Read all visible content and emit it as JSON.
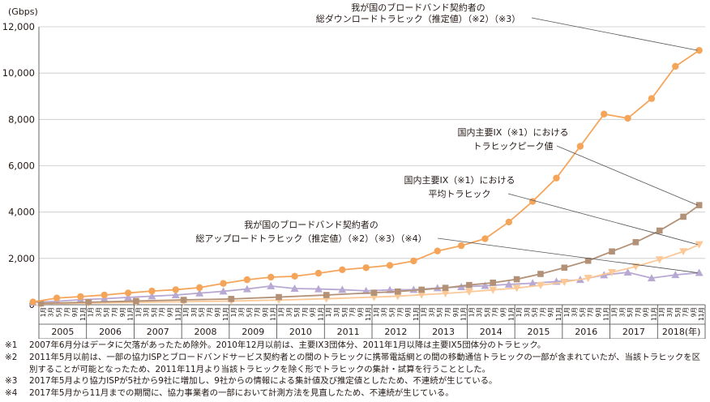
{
  "chart_data": {
    "type": "line",
    "y_unit": "(Gbps)",
    "ylim": [
      0,
      12000
    ],
    "yticks": [
      "0",
      "2,000",
      "4,000",
      "6,000",
      "8,000",
      "10,000",
      "12,000"
    ],
    "x_years": [
      "2005",
      "2006",
      "2007",
      "2008",
      "2009",
      "2010",
      "2011",
      "2012",
      "2013",
      "2014",
      "2015",
      "2016",
      "2017",
      "2018(年)"
    ],
    "x_month_labels": [
      "1月",
      "3月",
      "5月",
      "7月",
      "9月",
      "11月"
    ],
    "x_start": "2005-01",
    "grid": "horizontal",
    "series": [
      {
        "name": "我が国のブロードバンド契約者の総ダウンロードトラヒック（推定値）（※2）（※3）",
        "label_lines": [
          "我が国のブロードバンド契約者の",
          "総ダウンロードトラヒック（推定値）（※2）（※3）"
        ],
        "color": "#f5a55a",
        "marker": "circle",
        "x": [
          "2004-11",
          "2005-05",
          "2005-11",
          "2006-05",
          "2006-11",
          "2007-05",
          "2007-11",
          "2008-05",
          "2008-11",
          "2009-05",
          "2009-11",
          "2010-05",
          "2010-11",
          "2011-05",
          "2011-11",
          "2012-05",
          "2012-11",
          "2013-05",
          "2013-11",
          "2014-05",
          "2014-11",
          "2015-05",
          "2015-11",
          "2016-05",
          "2016-11",
          "2017-05",
          "2017-11",
          "2018-05",
          "2018-11"
        ],
        "values": [
          120,
          290,
          350,
          420,
          510,
          590,
          650,
          740,
          920,
          1080,
          1190,
          1230,
          1360,
          1510,
          1600,
          1700,
          1890,
          2320,
          2550,
          2850,
          3570,
          4460,
          5470,
          6840,
          8230,
          8050,
          8900,
          10290,
          10980
        ]
      },
      {
        "name": "国内主要IX（※1）におけるトラヒックピーク値",
        "label_lines": [
          "国内主要IX（※1）における",
          "トラヒックピーク値"
        ],
        "color": "#b39177",
        "marker": "square",
        "x": [
          "2005-01",
          "2006-01",
          "2007-01",
          "2008-01",
          "2009-01",
          "2010-01",
          "2011-01",
          "2012-01",
          "2012-07",
          "2013-01",
          "2013-07",
          "2014-01",
          "2014-07",
          "2015-01",
          "2015-07",
          "2016-01",
          "2016-07",
          "2017-01",
          "2017-07",
          "2018-01",
          "2018-07",
          "2018-11"
        ],
        "values": [
          60,
          110,
          160,
          210,
          250,
          330,
          420,
          520,
          570,
          650,
          730,
          850,
          950,
          1100,
          1330,
          1600,
          1900,
          2300,
          2700,
          3200,
          3800,
          4300
        ]
      },
      {
        "name": "国内主要IX（※1）における平均トラヒック",
        "label_lines": [
          "国内主要IX（※1）における",
          "平均トラヒック"
        ],
        "color": "#fbc998",
        "marker": "triangle-down",
        "x": [
          "2005-01",
          "2006-01",
          "2007-01",
          "2008-01",
          "2009-01",
          "2010-01",
          "2011-01",
          "2012-01",
          "2012-07",
          "2013-01",
          "2013-07",
          "2014-01",
          "2014-07",
          "2015-01",
          "2015-07",
          "2016-01",
          "2016-07",
          "2017-01",
          "2017-07",
          "2018-01",
          "2018-07",
          "2018-11"
        ],
        "values": [
          40,
          70,
          100,
          130,
          160,
          200,
          260,
          330,
          370,
          430,
          490,
          560,
          640,
          720,
          840,
          980,
          1150,
          1400,
          1650,
          1950,
          2300,
          2600
        ]
      },
      {
        "name": "我が国のブロードバンド契約者の総アップロードトラヒック（推定値）（※2）（※3）（※4）",
        "label_lines": [
          "我が国のブロードバンド契約者の",
          "総アップロードトラヒック（推定値）（※2）（※3）（※4）"
        ],
        "color": "#b8a9d3",
        "marker": "triangle-up",
        "x": [
          "2004-11",
          "2005-05",
          "2005-11",
          "2006-05",
          "2006-11",
          "2007-05",
          "2007-11",
          "2008-05",
          "2008-11",
          "2009-05",
          "2009-11",
          "2010-05",
          "2010-11",
          "2011-05",
          "2011-11",
          "2012-05",
          "2012-11",
          "2013-05",
          "2013-11",
          "2014-05",
          "2014-11",
          "2015-05",
          "2015-11",
          "2016-05",
          "2016-11",
          "2017-05",
          "2017-11",
          "2018-05",
          "2018-11"
        ],
        "values": [
          100,
          150,
          220,
          260,
          320,
          370,
          420,
          500,
          580,
          680,
          810,
          700,
          680,
          650,
          600,
          640,
          650,
          720,
          770,
          820,
          880,
          930,
          1000,
          1080,
          1280,
          1400,
          1150,
          1290,
          1380
        ]
      }
    ]
  },
  "notes": [
    {
      "mark": "※1",
      "text": "2007年6月分はデータに欠落があったため除外。2010年12月以前は、主要IX3団体分、2011年1月以降は主要IX5団体分のトラヒック。"
    },
    {
      "mark": "※2",
      "text": "2011年5月以前は、一部の協力ISPとブロードバンドサービス契約者との間のトラヒックに携帯電話網との間の移動通信トラヒックの一部が含まれていたが、当該トラヒックを区別することが可能となったため、2011年11月より当該トラヒックを除く形でトラヒックの集計・試算を行うこととした。"
    },
    {
      "mark": "※3",
      "text": "2017年5月より協力ISPが5社から9社に増加し、9社からの情報による集計値及び推定値としたため、不連続が生じている。"
    },
    {
      "mark": "※4",
      "text": "2017年5月から11月までの期間に、協力事業者の一部において計測方法を見直したため、不連続が生じている。"
    }
  ]
}
